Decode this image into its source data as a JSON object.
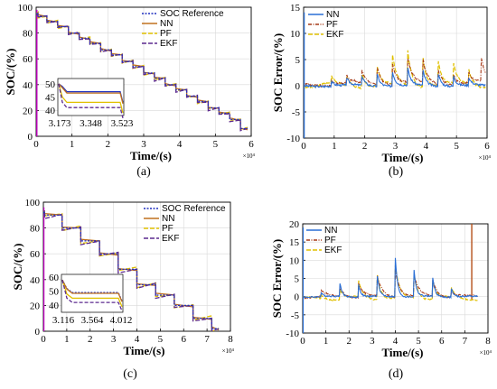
{
  "figure": {
    "colors": {
      "ref": "#1f2fbf",
      "nn": "#2a6fd6",
      "pf_orange": "#c0701e",
      "pf_brown": "#b5501a",
      "pf_dashdot": "#a63a18",
      "ekf_yellow": "#e0c000",
      "ekf_purple": "#5c2a8f",
      "spike_magenta": "#c000c0",
      "axis": "#000000",
      "grid": "#d9d9d9"
    }
  },
  "chart_data": [
    {
      "id": "a",
      "panel_label": "(a)",
      "type": "line",
      "xlabel": "Time/(s)",
      "ylabel": "SOC/(%)",
      "x_multiplier": "×10⁴",
      "xlim": [
        0,
        6
      ],
      "ylim": [
        0,
        100
      ],
      "xticks": [
        "0",
        "1",
        "2",
        "3",
        "4",
        "5",
        "6"
      ],
      "yticks": [
        "0",
        "20",
        "40",
        "60",
        "80",
        "100"
      ],
      "grid": true,
      "legend": "top-right",
      "legend_entries": [
        "SOC Reference",
        "NN",
        "PF",
        "EKF"
      ],
      "series": [
        {
          "name": "SOC Reference",
          "x": [
            0,
            0.05,
            0.05,
            0.3,
            0.3,
            0.6,
            0.6,
            0.9,
            0.9,
            1.2,
            1.2,
            1.5,
            1.5,
            1.8,
            1.8,
            2.1,
            2.1,
            2.4,
            2.4,
            2.7,
            2.7,
            3.0,
            3.0,
            3.3,
            3.3,
            3.6,
            3.6,
            3.9,
            3.9,
            4.2,
            4.2,
            4.5,
            4.5,
            4.8,
            4.8,
            5.1,
            5.1,
            5.4,
            5.4,
            5.7,
            5.7,
            5.9
          ],
          "values": [
            95,
            95,
            93,
            93,
            89,
            89,
            85,
            85,
            80,
            80,
            76,
            76,
            72,
            72,
            67,
            67,
            63,
            63,
            58,
            58,
            54,
            54,
            49,
            49,
            45,
            45,
            40,
            40,
            36,
            36,
            31,
            31,
            27,
            27,
            22,
            22,
            18,
            18,
            13,
            13,
            6,
            6
          ]
        }
      ],
      "inset": {
        "xticks": [
          "3.173",
          "3.348",
          "3.523"
        ],
        "yticks": [
          "40",
          "45",
          "50"
        ],
        "ylim": [
          38,
          52
        ]
      }
    },
    {
      "id": "b",
      "panel_label": "(b)",
      "type": "line",
      "xlabel": "Time/(s)",
      "ylabel": "SOC Error/(%)",
      "x_multiplier": "×10⁴",
      "xlim": [
        0,
        6
      ],
      "ylim": [
        -10,
        15
      ],
      "xticks": [
        "0",
        "1",
        "2",
        "3",
        "4",
        "5",
        "6"
      ],
      "yticks": [
        "-10",
        "-5",
        "0",
        "5",
        "10",
        "15"
      ],
      "grid": true,
      "legend": "top-left",
      "legend_entries": [
        "NN",
        "PF",
        "EKF"
      ]
    },
    {
      "id": "c",
      "panel_label": "(c)",
      "type": "line",
      "xlabel": "Time/(s)",
      "ylabel": "SOC/(%)",
      "x_multiplier": "×10⁴",
      "xlim": [
        0,
        8
      ],
      "ylim": [
        0,
        100
      ],
      "xticks": [
        "0",
        "1",
        "2",
        "3",
        "4",
        "5",
        "6",
        "7",
        "8"
      ],
      "yticks": [
        "0",
        "20",
        "40",
        "60",
        "80",
        "100"
      ],
      "grid": true,
      "legend": "top-right",
      "legend_entries": [
        "SOC Reference",
        "NN",
        "PF",
        "EKF"
      ],
      "series": [
        {
          "name": "SOC Reference",
          "x": [
            0,
            0.05,
            0.05,
            0.8,
            0.8,
            1.6,
            1.6,
            2.4,
            2.4,
            3.2,
            3.2,
            4.0,
            4.0,
            4.8,
            4.8,
            5.6,
            5.6,
            6.4,
            6.4,
            7.2,
            7.2,
            7.5
          ],
          "values": [
            92,
            92,
            90,
            90,
            80,
            80,
            70,
            70,
            60,
            60,
            48,
            48,
            36,
            36,
            28,
            28,
            20,
            20,
            10,
            10,
            2,
            2
          ]
        }
      ],
      "inset": {
        "xticks": [
          "3.116",
          "3.564",
          "4.012"
        ],
        "yticks": [
          "40",
          "50",
          "60"
        ],
        "ylim": [
          35,
          62
        ]
      }
    },
    {
      "id": "d",
      "panel_label": "(d)",
      "type": "line",
      "xlabel": "Time/(s)",
      "ylabel": "SOC Error/(%)",
      "x_multiplier": "×10⁴",
      "xlim": [
        0,
        8
      ],
      "ylim": [
        -10,
        20
      ],
      "xticks": [
        "0",
        "1",
        "2",
        "3",
        "4",
        "5",
        "6",
        "7",
        "8"
      ],
      "yticks": [
        "-10",
        "-5",
        "0",
        "5",
        "10",
        "15",
        "20"
      ],
      "grid": true,
      "legend": "top-left",
      "legend_entries": [
        "NN",
        "PF",
        "EKF"
      ]
    }
  ]
}
